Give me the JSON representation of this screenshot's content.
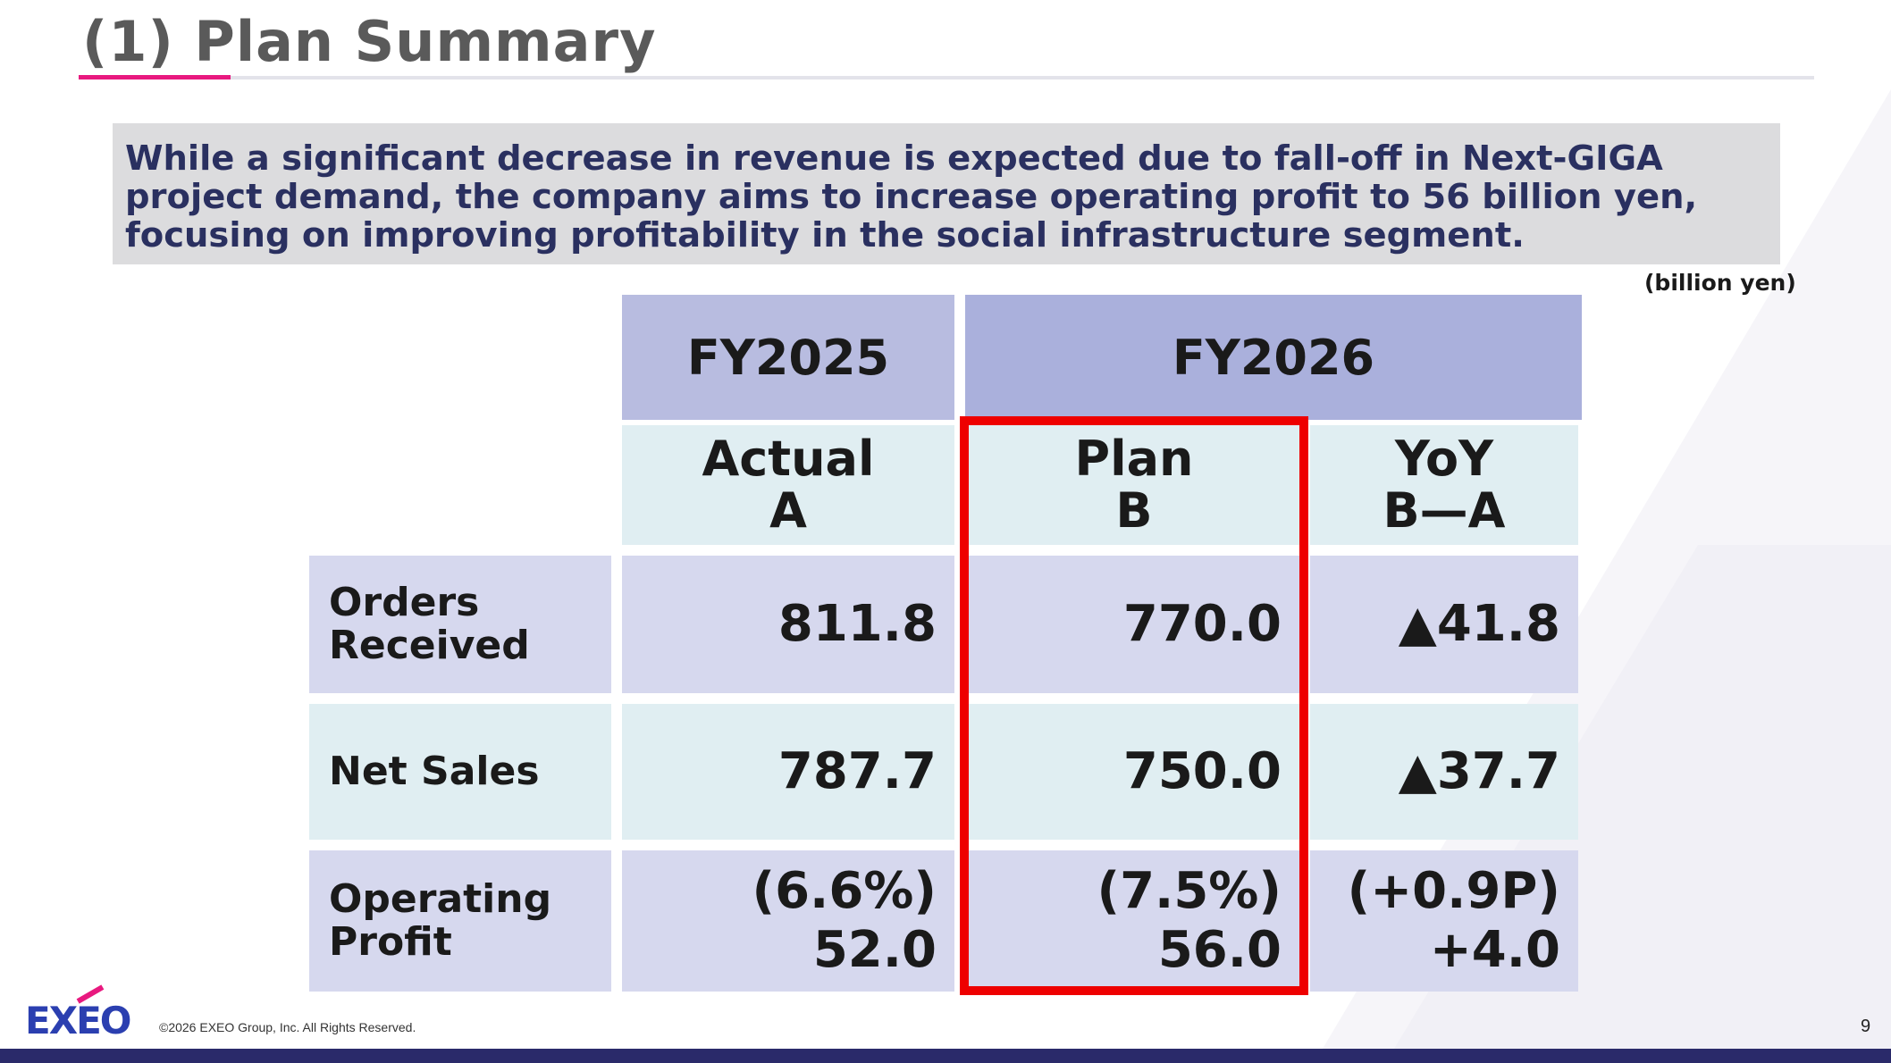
{
  "slide": {
    "title": "(1)  Plan Summary",
    "summary": "While a significant decrease in revenue is expected due to fall-off in Next-GIGA project demand, the company aims to increase operating profit to 56 billion yen, focusing on improving profitability in the social infrastructure segment.",
    "unit": "(billion yen)",
    "accent_color": "#e8197f",
    "highlight_color": "#ee0000"
  },
  "table": {
    "headers": {
      "fy2025": "FY2025",
      "fy2026": "FY2026",
      "actual_line1": "Actual",
      "actual_line2": "A",
      "plan_line1": "Plan",
      "plan_line2": "B",
      "yoy_line1": "YoY",
      "yoy_line2": "B—A"
    },
    "rows": [
      {
        "label_line1": "Orders",
        "label_line2": "Received",
        "actual": "811.8",
        "plan": "770.0",
        "yoy": "▲41.8"
      },
      {
        "label": "Net Sales",
        "actual": "787.7",
        "plan": "750.0",
        "yoy": "▲37.7"
      },
      {
        "label_line1": "Operating",
        "label_line2": "Profit",
        "actual_margin": "(6.6%)",
        "actual": "52.0",
        "plan_margin": "(7.5%)",
        "plan": "56.0",
        "yoy_margin": "(+0.9P)",
        "yoy": "+4.0"
      }
    ]
  },
  "footer": {
    "logo": "EXEO",
    "copyright": "©2026 EXEO Group, Inc. All Rights Reserved.",
    "page_number": "9"
  }
}
